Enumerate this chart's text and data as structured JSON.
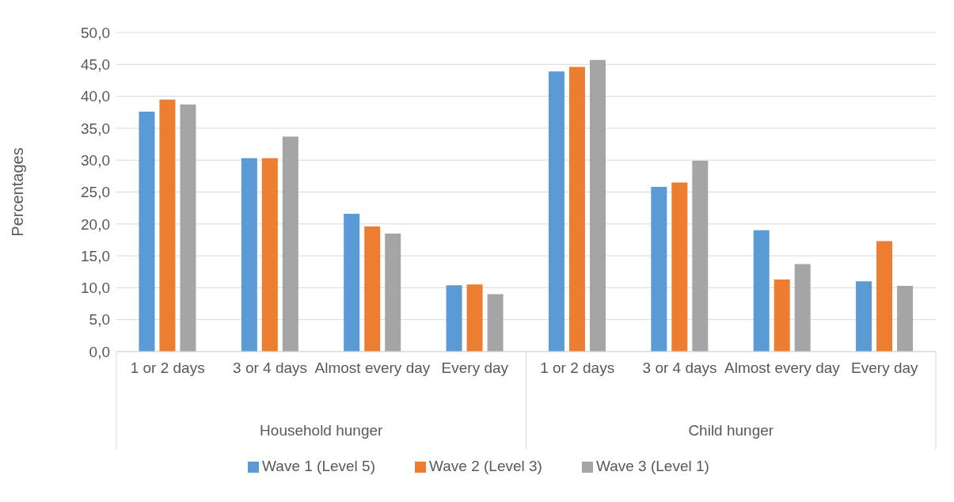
{
  "chart_data": {
    "type": "bar",
    "ylabel": "Percentages",
    "categories": [
      "1 or 2 days",
      "3 or 4 days",
      "Almost every day",
      "Every day",
      "1 or 2 days",
      "3 or 4 days",
      "Almost every day",
      "Every day"
    ],
    "series": [
      {
        "name": "Wave 1 (Level 5)",
        "color": "#5b9bd5",
        "values": [
          37.6,
          30.3,
          21.6,
          10.4,
          43.9,
          25.8,
          19.0,
          11.0
        ]
      },
      {
        "name": "Wave 2 (Level 3)",
        "color": "#ed7d31",
        "values": [
          39.5,
          30.3,
          19.6,
          10.5,
          44.6,
          26.5,
          11.3,
          17.3
        ]
      },
      {
        "name": "Wave 3 (Level 1)",
        "color": "#a5a5a5",
        "values": [
          38.7,
          33.7,
          18.5,
          9.0,
          45.7,
          29.9,
          13.7,
          10.3
        ]
      }
    ],
    "ylim": [
      0,
      50
    ],
    "yticks": [
      {
        "value": 0,
        "label": "0,0"
      },
      {
        "value": 5,
        "label": "5,0"
      },
      {
        "value": 10,
        "label": "10,0"
      },
      {
        "value": 15,
        "label": "15,0"
      },
      {
        "value": 20,
        "label": "20,0"
      },
      {
        "value": 25,
        "label": "25,0"
      },
      {
        "value": 30,
        "label": "30,0"
      },
      {
        "value": 35,
        "label": "35,0"
      },
      {
        "value": 40,
        "label": "40,0"
      },
      {
        "value": 45,
        "label": "45,0"
      },
      {
        "value": 50,
        "label": "50,0"
      }
    ],
    "annotations": [
      "Household hunger",
      "Child hunger"
    ],
    "grid": "y",
    "legend": "bottom"
  }
}
